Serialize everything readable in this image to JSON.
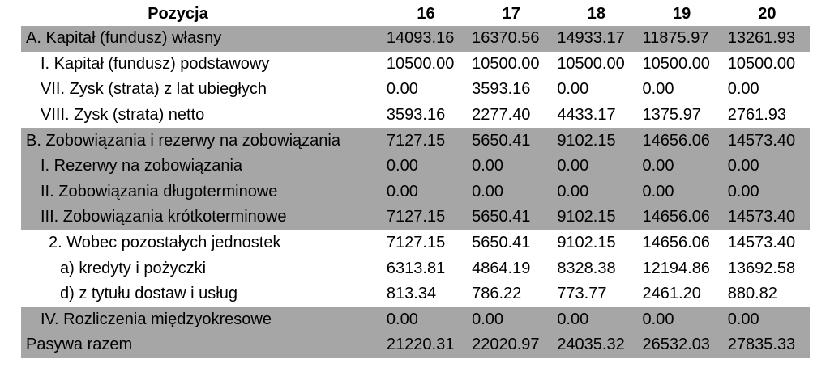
{
  "table": {
    "header": {
      "label": "Pozycja",
      "years": [
        "16",
        "17",
        "18",
        "19",
        "20"
      ]
    },
    "rows": [
      {
        "label": "A. Kapitał (fundusz) własny",
        "shaded": true,
        "indent": 0,
        "values": [
          "14093.16",
          "16370.56",
          "14933.17",
          "11875.97",
          "13261.93"
        ]
      },
      {
        "label": "I. Kapitał (fundusz) podstawowy",
        "shaded": false,
        "indent": 1,
        "values": [
          "10500.00",
          "10500.00",
          "10500.00",
          "10500.00",
          "10500.00"
        ]
      },
      {
        "label": "VII. Zysk (strata) z lat ubiegłych",
        "shaded": false,
        "indent": 1,
        "values": [
          "0.00",
          "3593.16",
          "0.00",
          "0.00",
          "0.00"
        ]
      },
      {
        "label": "VIII. Zysk (strata) netto",
        "shaded": false,
        "indent": 1,
        "values": [
          "3593.16",
          "2277.40",
          "4433.17",
          "1375.97",
          "2761.93"
        ]
      },
      {
        "label": "B. Zobowiązania i rezerwy na zobowiązania",
        "shaded": true,
        "indent": 0,
        "values": [
          "7127.15",
          "5650.41",
          "9102.15",
          "14656.06",
          "14573.40"
        ]
      },
      {
        "label": "I. Rezerwy na zobowiązania",
        "shaded": true,
        "indent": 1,
        "values": [
          "0.00",
          "0.00",
          "0.00",
          "0.00",
          "0.00"
        ]
      },
      {
        "label": "II. Zobowiązania długoterminowe",
        "shaded": true,
        "indent": 1,
        "values": [
          "0.00",
          "0.00",
          "0.00",
          "0.00",
          "0.00"
        ]
      },
      {
        "label": "III. Zobowiązania krótkoterminowe",
        "shaded": true,
        "indent": 1,
        "values": [
          "7127.15",
          "5650.41",
          "9102.15",
          "14656.06",
          "14573.40"
        ]
      },
      {
        "label": "2. Wobec pozostałych jednostek",
        "shaded": false,
        "indent": 2,
        "values": [
          "7127.15",
          "5650.41",
          "9102.15",
          "14656.06",
          "14573.40"
        ]
      },
      {
        "label": "a) kredyty i pożyczki",
        "shaded": false,
        "indent": 3,
        "values": [
          "6313.81",
          "4864.19",
          "8328.38",
          "12194.86",
          "13692.58"
        ]
      },
      {
        "label": "d) z tytułu dostaw i usług",
        "shaded": false,
        "indent": 3,
        "values": [
          "813.34",
          "786.22",
          "773.77",
          "2461.20",
          "880.82"
        ]
      },
      {
        "label": "IV. Rozliczenia międzyokresowe",
        "shaded": true,
        "indent": 1,
        "values": [
          "0.00",
          "0.00",
          "0.00",
          "0.00",
          "0.00"
        ]
      },
      {
        "label": "Pasywa razem",
        "shaded": true,
        "indent": 0,
        "values": [
          "21220.31",
          "22020.97",
          "24035.32",
          "26532.03",
          "27835.33"
        ]
      }
    ]
  },
  "colors": {
    "shaded_row": "#a6a6a6",
    "text": "#000000",
    "background": "#ffffff"
  }
}
